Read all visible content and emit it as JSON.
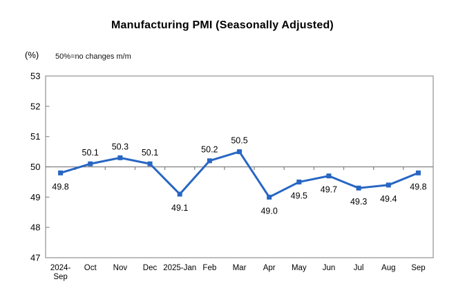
{
  "chart_data": {
    "type": "line",
    "title": "Manufacturing PMI (Seasonally Adjusted)",
    "unit": "(%)",
    "note": "50%=no changes m/m",
    "categories": [
      "2024-\nSep",
      "Oct",
      "Nov",
      "Dec",
      "2025-Jan",
      "Feb",
      "Mar",
      "Apr",
      "May",
      "Jun",
      "Jul",
      "Aug",
      "Sep"
    ],
    "values": [
      49.8,
      50.1,
      50.3,
      50.1,
      49.1,
      50.2,
      50.5,
      49.0,
      49.5,
      49.7,
      49.3,
      49.4,
      49.8
    ],
    "ylim": [
      47,
      53
    ],
    "ytick_step": 1,
    "yticks": [
      47,
      48,
      49,
      50,
      51,
      52,
      53
    ],
    "reference_line": 50,
    "grid": false,
    "legend": "none",
    "data_labels": [
      "49.8",
      "50.1",
      "50.3",
      "50.1",
      "49.1",
      "50.2",
      "50.5",
      "49.0",
      "49.5",
      "49.7",
      "49.3",
      "49.4",
      "49.8"
    ],
    "colors": {
      "series": "#2766c3",
      "plot_border": "#a0a0a0",
      "reference_line": "#808080",
      "tick": "#909090",
      "text": "#000000"
    }
  }
}
